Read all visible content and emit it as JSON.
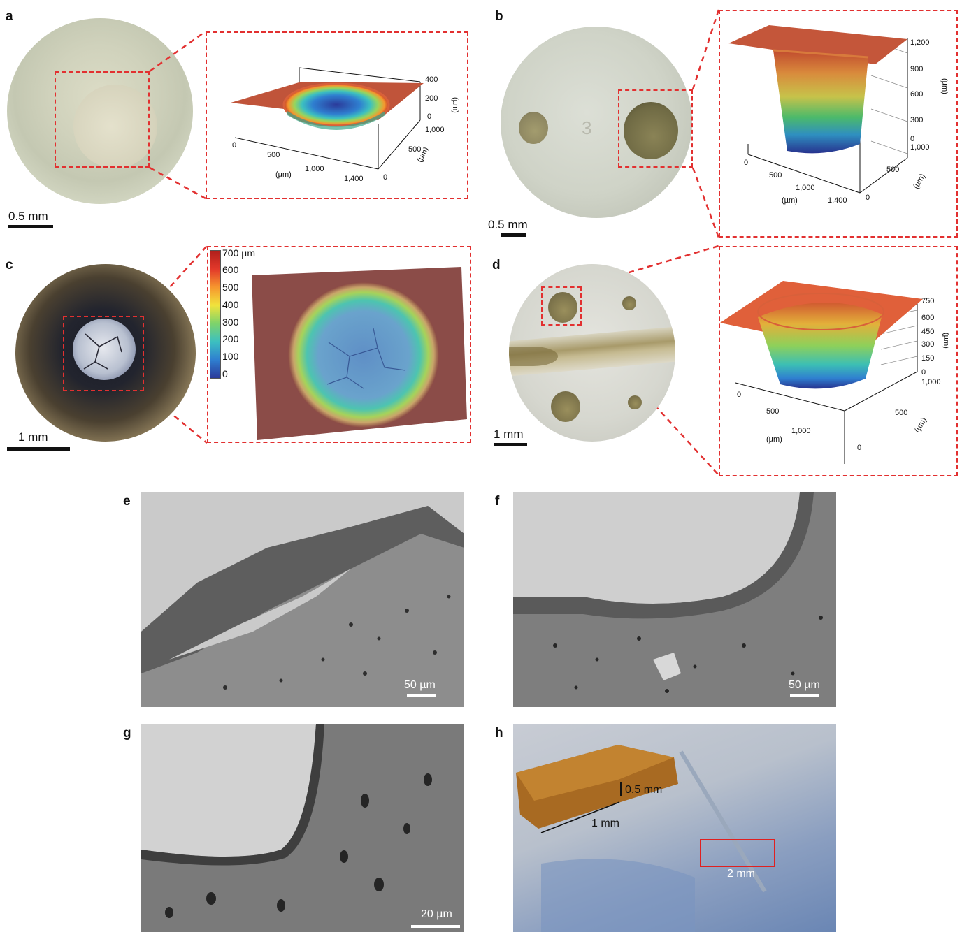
{
  "panels": {
    "a": {
      "letter": "a",
      "scale": "0.5 mm",
      "z_ticks": [
        "400",
        "200",
        "0"
      ],
      "z_unit": "(µm)",
      "x_ticks": [
        "0",
        "500",
        "1,000",
        "1,400"
      ],
      "x_unit": "(µm)",
      "y_ticks": [
        "1,000",
        "500",
        "0"
      ],
      "y_unit": "(µm)"
    },
    "b": {
      "letter": "b",
      "scale": "0.5 mm",
      "engraving": "3",
      "z_ticks": [
        "1,200",
        "900",
        "600",
        "300",
        "0"
      ],
      "z_unit": "(µm)",
      "x_ticks": [
        "0",
        "500",
        "1,000",
        "1,400"
      ],
      "x_unit": "(µm)",
      "y_ticks": [
        "1,000",
        "500",
        "0"
      ],
      "y_unit": "(µm)"
    },
    "c": {
      "letter": "c",
      "scale": "1 mm",
      "colorbar": [
        "700 µm",
        "600",
        "500",
        "400",
        "300",
        "200",
        "100",
        "0"
      ]
    },
    "d": {
      "letter": "d",
      "scale": "1 mm",
      "z_ticks": [
        "750",
        "600",
        "450",
        "300",
        "150",
        "0"
      ],
      "z_unit": "(µm)",
      "x_ticks": [
        "0",
        "500",
        "1,000"
      ],
      "x_unit": "(µm)",
      "y_ticks": [
        "1,000",
        "500",
        "0"
      ],
      "y_unit": "(µm)"
    },
    "e": {
      "letter": "e",
      "scale": "50 µm"
    },
    "f": {
      "letter": "f",
      "scale": "50 µm"
    },
    "g": {
      "letter": "g",
      "scale": "20 µm"
    },
    "h": {
      "letter": "h",
      "height_label": "0.5 mm",
      "length_label": "1 mm",
      "region_label": "2 mm"
    }
  },
  "colors": {
    "dash": "#e23030",
    "jet": [
      "#2b3a9a",
      "#2f7fd0",
      "#3cc0c0",
      "#7ed36a",
      "#f1e33c",
      "#f6962e",
      "#e2382a",
      "#b0201c"
    ]
  }
}
